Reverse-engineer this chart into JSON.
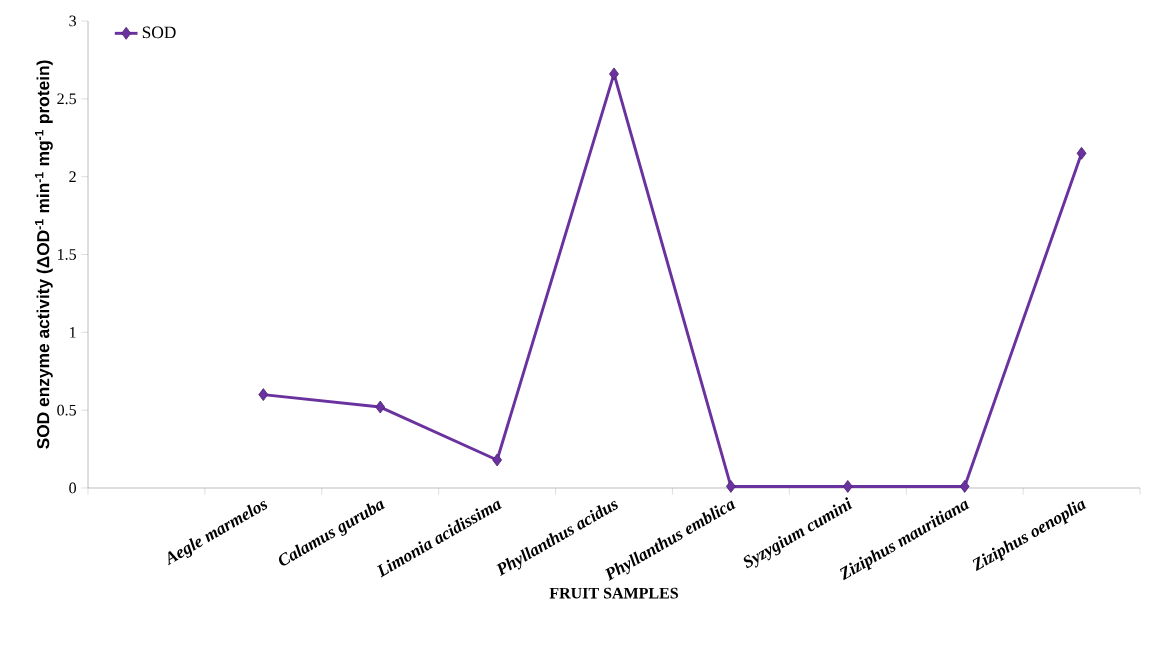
{
  "chart_data": {
    "type": "line",
    "xlabel": "FRUIT SAMPLES",
    "ylabel": "SOD enzyme activity (ΔOD$^{-1}$ min$^{-1}$ mg$^{-1}$ protein)",
    "categories": [
      null,
      "Aegle marmelos",
      "Calamus guruba",
      "Limonia acidissima",
      "Phyllanthus acidus",
      "Phyllanthus emblica",
      "Syzygium cumini",
      "Ziziphus mauritiana",
      "Ziziphus oenoplia"
    ],
    "series": [
      {
        "name": "SOD",
        "color": "#6a329f",
        "values": [
          null,
          0.6,
          0.52,
          0.18,
          2.66,
          0.01,
          0.01,
          0.01,
          2.15
        ]
      }
    ],
    "ylim": [
      0,
      3
    ],
    "yticks": [
      0,
      0.5,
      1,
      1.5,
      2,
      2.5,
      3
    ],
    "legend": "top left",
    "marker": "diamond"
  }
}
